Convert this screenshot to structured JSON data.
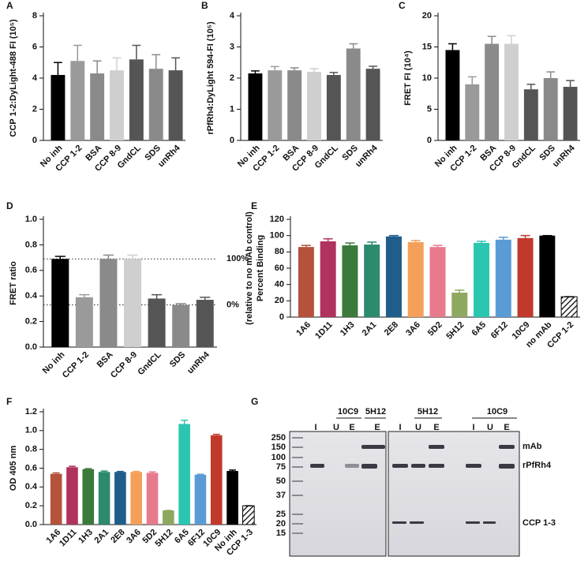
{
  "chart_data": [
    {
      "type": "bar",
      "panel": "A",
      "ylabel": [
        "CCP 1-2:DyLight-488 FI  (10⁵)"
      ],
      "categories": [
        "No inh",
        "CCP 1-2",
        "BSA",
        "CCP 8-9",
        "GndCL",
        "SDS",
        "unRh4"
      ],
      "values": [
        4.2,
        5.1,
        4.3,
        4.5,
        5.2,
        4.6,
        4.5
      ],
      "errors": [
        0.8,
        1.0,
        0.8,
        0.8,
        0.9,
        0.9,
        0.8
      ],
      "colors": [
        "#000000",
        "#9a9a9a",
        "#8a8a8a",
        "#cfcfcf",
        "#555555",
        "#8a8a8a",
        "#555555"
      ],
      "ylim": [
        0,
        8
      ],
      "yticks": [
        0,
        2,
        4,
        6,
        8
      ]
    },
    {
      "type": "bar",
      "panel": "B",
      "ylabel": [
        "rPfRh4:DyLight 594-FI  (10⁵)"
      ],
      "categories": [
        "No inh",
        "CCP 1-2",
        "BSA",
        "CCP 8-9",
        "GndCL",
        "SDS",
        "unRh4"
      ],
      "values": [
        2.15,
        2.25,
        2.25,
        2.2,
        2.1,
        2.95,
        2.3
      ],
      "errors": [
        0.08,
        0.12,
        0.08,
        0.1,
        0.08,
        0.15,
        0.08
      ],
      "colors": [
        "#000000",
        "#9a9a9a",
        "#8a8a8a",
        "#cfcfcf",
        "#555555",
        "#8a8a8a",
        "#555555"
      ],
      "ylim": [
        0,
        4
      ],
      "yticks": [
        0,
        1,
        2,
        3,
        4
      ]
    },
    {
      "type": "bar",
      "panel": "C",
      "ylabel": [
        "FRET FI  (10⁴)"
      ],
      "categories": [
        "No inh",
        "CCP 1-2",
        "BSA",
        "CCP 8-9",
        "GndCL",
        "SDS",
        "unRh4"
      ],
      "values": [
        14.5,
        9,
        15.5,
        15.5,
        8.2,
        10,
        8.6
      ],
      "errors": [
        1,
        1.2,
        1.2,
        1.3,
        0.8,
        1,
        1
      ],
      "colors": [
        "#000000",
        "#9a9a9a",
        "#8a8a8a",
        "#cfcfcf",
        "#555555",
        "#8a8a8a",
        "#555555"
      ],
      "ylim": [
        0,
        20
      ],
      "yticks": [
        0,
        5,
        10,
        15,
        20
      ]
    },
    {
      "type": "bar",
      "panel": "D",
      "ylabel": [
        "FRET ratio"
      ],
      "categories": [
        "No inh",
        "CCP 1-2",
        "BSA",
        "CCP 8-9",
        "GndCL",
        "SDS",
        "unRh4"
      ],
      "values": [
        0.69,
        0.39,
        0.69,
        0.69,
        0.38,
        0.33,
        0.37
      ],
      "errors": [
        0.02,
        0.02,
        0.03,
        0.03,
        0.03,
        0.01,
        0.02
      ],
      "colors": [
        "#000000",
        "#9a9a9a",
        "#8a8a8a",
        "#cfcfcf",
        "#555555",
        "#8a8a8a",
        "#555555"
      ],
      "ylim": [
        0,
        1
      ],
      "yticks": [
        {
          "value": 0,
          "label": "0.0"
        },
        0.2,
        0.4,
        0.6,
        0.8,
        {
          "value": 1,
          "label": "1.0"
        }
      ],
      "reference_lines": [
        {
          "value": 0.69,
          "label": "100%"
        },
        {
          "value": 0.33,
          "label": "0%"
        }
      ]
    },
    {
      "type": "bar",
      "panel": "E",
      "ylabel": [
        "Percent Binding",
        "(relative to no mAb control)"
      ],
      "categories": [
        "1A6",
        "1D11",
        "1H3",
        "2A1",
        "2E8",
        "3A6",
        "5D2",
        "5H12",
        "6A5",
        "6F12",
        "10C9",
        "no mAb",
        "CCP 1-2"
      ],
      "values": [
        86,
        93,
        88,
        89,
        99,
        92,
        86,
        30,
        91,
        95,
        97,
        100,
        25
      ],
      "errors": [
        2,
        3,
        3,
        3,
        1,
        2,
        2,
        3,
        2,
        3,
        3,
        0,
        0
      ],
      "colors": [
        "#b5523b",
        "#b0325e",
        "#3b7a3a",
        "#2d8a6e",
        "#1f5e8a",
        "#f5a05a",
        "#e87a8e",
        "#8fa860",
        "#2bc6b0",
        "#5b9bd5",
        "#c0392b",
        "#000000",
        "#000000"
      ],
      "patterns": [
        "solid",
        "solid",
        "solid",
        "solid",
        "solid",
        "solid",
        "solid",
        "solid",
        "solid",
        "solid",
        "solid",
        "solid",
        "hatch"
      ],
      "ylim": [
        0,
        120
      ],
      "yticks": [
        0,
        20,
        40,
        60,
        80,
        100,
        120
      ]
    },
    {
      "type": "bar",
      "panel": "F",
      "ylabel": [
        "OD 405 nm"
      ],
      "categories": [
        "1A6",
        "1D11",
        "1H3",
        "2A1",
        "2E8",
        "3A6",
        "5D2",
        "5H12",
        "6A5",
        "6F12",
        "10C9",
        "No inh",
        "CCP 1-3"
      ],
      "values": [
        0.54,
        0.61,
        0.59,
        0.56,
        0.56,
        0.56,
        0.55,
        0.15,
        1.07,
        0.53,
        0.95,
        0.57,
        0.2
      ],
      "errors": [
        0.01,
        0.01,
        0.005,
        0.01,
        0.005,
        0.005,
        0.01,
        0,
        0.04,
        0.005,
        0.01,
        0.01,
        0
      ],
      "colors": [
        "#b5523b",
        "#b0325e",
        "#3b7a3a",
        "#2d8a6e",
        "#1f5e8a",
        "#f5a05a",
        "#e87a8e",
        "#8fa860",
        "#2bc6b0",
        "#5b9bd5",
        "#c0392b",
        "#000000",
        "#000000"
      ],
      "patterns": [
        "solid",
        "solid",
        "solid",
        "solid",
        "solid",
        "solid",
        "solid",
        "solid",
        "solid",
        "solid",
        "solid",
        "solid",
        "hatch"
      ],
      "ylim": [
        0,
        1.2
      ],
      "yticks": [
        {
          "value": 0,
          "label": "0.0"
        },
        0.2,
        0.4,
        0.6,
        0.8,
        {
          "value": 1,
          "label": "1.0"
        },
        1.2
      ]
    }
  ],
  "gel": {
    "panel": "G",
    "markers": [
      "250",
      "150",
      "100",
      "75",
      "50",
      "37",
      "25",
      "20",
      "15"
    ],
    "left_groups": [
      "10C9",
      "5H12"
    ],
    "right_groups": [
      "5H12",
      "10C9"
    ],
    "left_lanes": [
      "I",
      "U",
      "E",
      "E"
    ],
    "right_lanes": [
      "I",
      "U",
      "E",
      "I",
      "U",
      "E"
    ],
    "band_labels": [
      "mAb",
      "rPfRh4",
      "CCP 1-3"
    ]
  }
}
